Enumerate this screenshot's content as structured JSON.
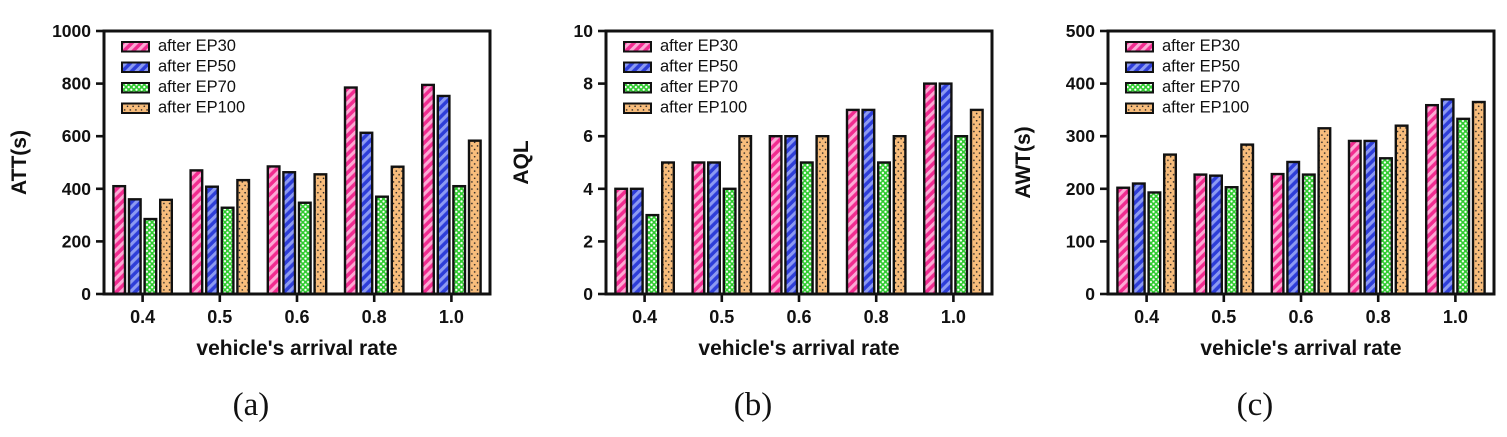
{
  "figure": {
    "background": "#ffffff",
    "axis_color": "#111111",
    "text_color": "#111111"
  },
  "series_styles": [
    {
      "name": "after EP30",
      "pattern": "diagonal-stripe",
      "base": "#F12C90",
      "accent": "#FCA9D4"
    },
    {
      "name": "after EP50",
      "pattern": "diagonal-stripe",
      "base": "#2E3ED8",
      "accent": "#8C9AF2"
    },
    {
      "name": "after EP70",
      "pattern": "dot-grid",
      "base": "#2FCB2F",
      "accent": "#FFFFFF"
    },
    {
      "name": "after EP100",
      "pattern": "dot-columns",
      "base": "#F8BD7C",
      "accent": "#222222"
    }
  ],
  "chart_data": [
    {
      "type": "bar",
      "caption": "(a)",
      "ylabel": "ATT(s)",
      "xlabel": "vehicle's arrival rate",
      "ylim": [
        0,
        1000
      ],
      "ytick_step": 200,
      "grid": false,
      "legend_position": "top-left",
      "legend": [
        "after EP30",
        "after EP50",
        "after EP70",
        "after EP100"
      ],
      "categories": [
        "0.4",
        "0.5",
        "0.6",
        "0.8",
        "1.0"
      ],
      "series": [
        {
          "name": "after EP30",
          "values": [
            410,
            470,
            485,
            785,
            795
          ]
        },
        {
          "name": "after EP50",
          "values": [
            360,
            408,
            463,
            613,
            753
          ]
        },
        {
          "name": "after EP70",
          "values": [
            285,
            328,
            347,
            370,
            410
          ]
        },
        {
          "name": "after EP100",
          "values": [
            358,
            433,
            455,
            484,
            583
          ]
        }
      ]
    },
    {
      "type": "bar",
      "caption": "(b)",
      "ylabel": "AQL",
      "xlabel": "vehicle's arrival rate",
      "ylim": [
        0,
        10
      ],
      "ytick_step": 2,
      "grid": false,
      "legend_position": "top-left",
      "legend": [
        "after EP30",
        "after EP50",
        "after EP70",
        "after EP100"
      ],
      "categories": [
        "0.4",
        "0.5",
        "0.6",
        "0.8",
        "1.0"
      ],
      "series": [
        {
          "name": "after EP30",
          "values": [
            4,
            5,
            6,
            7,
            8
          ]
        },
        {
          "name": "after EP50",
          "values": [
            4,
            5,
            6,
            7,
            8
          ]
        },
        {
          "name": "after EP70",
          "values": [
            3,
            4,
            5,
            5,
            6
          ]
        },
        {
          "name": "after EP100",
          "values": [
            5,
            6,
            6,
            6,
            7
          ]
        }
      ]
    },
    {
      "type": "bar",
      "caption": "(c)",
      "ylabel": "AWT(s)",
      "xlabel": "vehicle's arrival rate",
      "ylim": [
        0,
        500
      ],
      "ytick_step": 100,
      "grid": false,
      "legend_position": "top-left",
      "legend": [
        "after EP30",
        "after EP50",
        "after EP70",
        "after EP100"
      ],
      "categories": [
        "0.4",
        "0.5",
        "0.6",
        "0.8",
        "1.0"
      ],
      "series": [
        {
          "name": "after EP30",
          "values": [
            202,
            227,
            228,
            291,
            359
          ]
        },
        {
          "name": "after EP50",
          "values": [
            210,
            225,
            251,
            291,
            370
          ]
        },
        {
          "name": "after EP70",
          "values": [
            193,
            203,
            227,
            258,
            333
          ]
        },
        {
          "name": "after EP100",
          "values": [
            265,
            284,
            315,
            320,
            365
          ]
        }
      ]
    }
  ]
}
